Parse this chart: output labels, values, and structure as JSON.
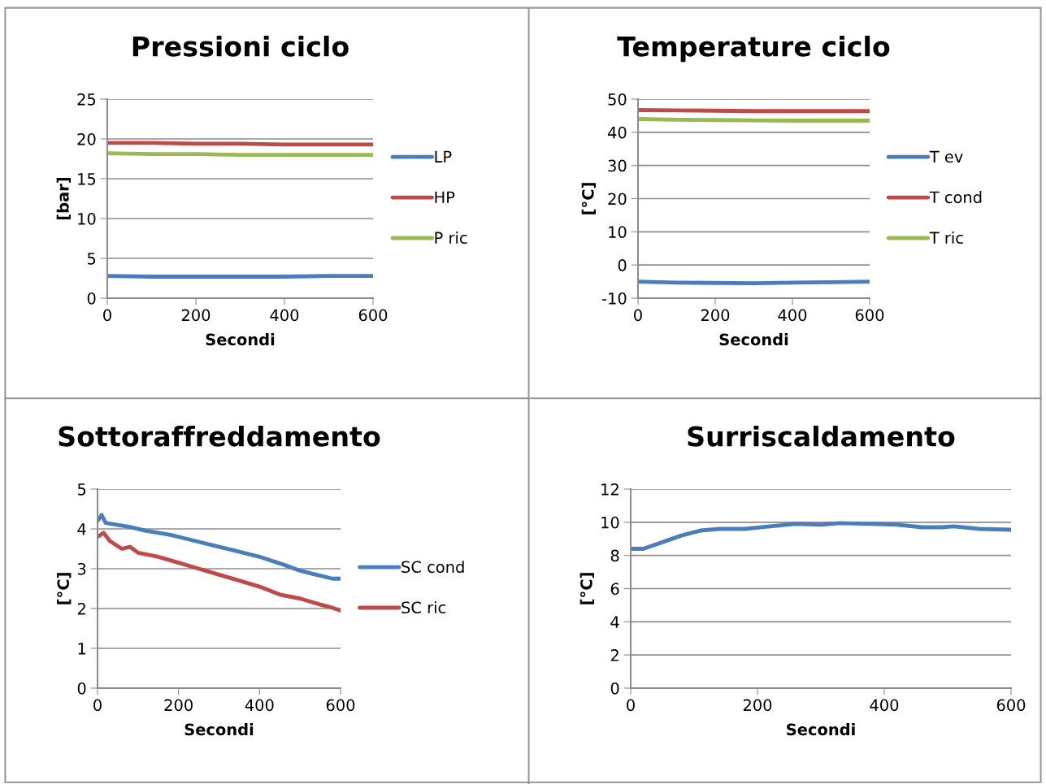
{
  "chart_data": [
    {
      "type": "line",
      "title": "Pressioni ciclo",
      "xlabel": "Secondi",
      "ylabel": "[bar]",
      "xlim": [
        0,
        600
      ],
      "xticks": [
        0,
        200,
        400,
        600
      ],
      "ylim": [
        0,
        25
      ],
      "yticks": [
        0,
        5,
        10,
        15,
        20,
        25
      ],
      "grid": "y",
      "legend": "right",
      "marker": "none",
      "line_style": "solid",
      "series": [
        {
          "name": "LP",
          "color": "#4a7ebb",
          "x": [
            0,
            100,
            200,
            300,
            400,
            500,
            600
          ],
          "values": [
            2.8,
            2.7,
            2.7,
            2.7,
            2.7,
            2.8,
            2.8
          ]
        },
        {
          "name": "HP",
          "color": "#be4b48",
          "x": [
            0,
            100,
            200,
            300,
            400,
            500,
            600
          ],
          "values": [
            19.5,
            19.5,
            19.4,
            19.4,
            19.3,
            19.3,
            19.3
          ]
        },
        {
          "name": "P ric",
          "color": "#98b954",
          "x": [
            0,
            100,
            200,
            300,
            400,
            500,
            600
          ],
          "values": [
            18.2,
            18.1,
            18.1,
            18.0,
            18.0,
            18.0,
            18.0
          ]
        }
      ]
    },
    {
      "type": "line",
      "title": "Temperature ciclo",
      "xlabel": "Secondi",
      "ylabel": "[°C]",
      "xlim": [
        0,
        600
      ],
      "xticks": [
        0,
        200,
        400,
        600
      ],
      "ylim": [
        -10,
        50
      ],
      "yticks": [
        -10,
        0,
        10,
        20,
        30,
        40,
        50
      ],
      "grid": "y",
      "legend": "right",
      "marker": "none",
      "line_style": "solid",
      "series": [
        {
          "name": "T ev",
          "color": "#4a7ebb",
          "x": [
            0,
            100,
            200,
            300,
            400,
            500,
            600
          ],
          "values": [
            -5,
            -5.3,
            -5.4,
            -5.5,
            -5.3,
            -5.2,
            -5
          ]
        },
        {
          "name": "T cond",
          "color": "#be4b48",
          "x": [
            0,
            100,
            200,
            300,
            400,
            500,
            600
          ],
          "values": [
            46.7,
            46.6,
            46.5,
            46.4,
            46.4,
            46.4,
            46.4
          ]
        },
        {
          "name": "T ric",
          "color": "#98b954",
          "x": [
            0,
            100,
            200,
            300,
            400,
            500,
            600
          ],
          "values": [
            44,
            43.8,
            43.7,
            43.6,
            43.5,
            43.5,
            43.5
          ]
        }
      ]
    },
    {
      "type": "line",
      "title": "Sottoraffreddamento",
      "xlabel": "Secondi",
      "ylabel": "[°C]",
      "xlim": [
        0,
        600
      ],
      "xticks": [
        0,
        200,
        400,
        600
      ],
      "ylim": [
        0,
        5
      ],
      "yticks": [
        0,
        1,
        2,
        3,
        4,
        5
      ],
      "grid": "y",
      "legend": "right",
      "marker": "none",
      "line_style": "solid",
      "series": [
        {
          "name": "SC cond",
          "color": "#4a7ebb",
          "x": [
            0,
            10,
            20,
            50,
            80,
            120,
            180,
            220,
            280,
            340,
            400,
            460,
            500,
            540,
            580,
            600
          ],
          "values": [
            4.2,
            4.35,
            4.15,
            4.1,
            4.05,
            3.95,
            3.85,
            3.75,
            3.6,
            3.45,
            3.3,
            3.1,
            2.95,
            2.85,
            2.75,
            2.75
          ]
        },
        {
          "name": "SC ric",
          "color": "#be4b48",
          "x": [
            0,
            15,
            30,
            60,
            80,
            100,
            150,
            200,
            250,
            300,
            350,
            400,
            450,
            500,
            550,
            570,
            600
          ],
          "values": [
            3.8,
            3.9,
            3.7,
            3.5,
            3.55,
            3.4,
            3.3,
            3.15,
            3.0,
            2.85,
            2.7,
            2.55,
            2.35,
            2.25,
            2.1,
            2.05,
            1.95
          ]
        }
      ]
    },
    {
      "type": "line",
      "title": "Surriscaldamento",
      "xlabel": "Secondi",
      "ylabel": "[°C]",
      "xlim": [
        0,
        600
      ],
      "xticks": [
        0,
        200,
        400,
        600
      ],
      "ylim": [
        0,
        12
      ],
      "yticks": [
        0,
        2,
        4,
        6,
        8,
        10,
        12
      ],
      "grid": "y",
      "legend": false,
      "marker": "none",
      "line_style": "solid",
      "series": [
        {
          "color": "#4a7ebb",
          "x": [
            0,
            20,
            50,
            80,
            110,
            140,
            180,
            220,
            260,
            300,
            330,
            380,
            420,
            460,
            490,
            510,
            550,
            600
          ],
          "values": [
            8.4,
            8.4,
            8.8,
            9.2,
            9.5,
            9.6,
            9.6,
            9.75,
            9.9,
            9.85,
            9.95,
            9.9,
            9.85,
            9.7,
            9.7,
            9.75,
            9.6,
            9.55
          ]
        }
      ]
    }
  ]
}
